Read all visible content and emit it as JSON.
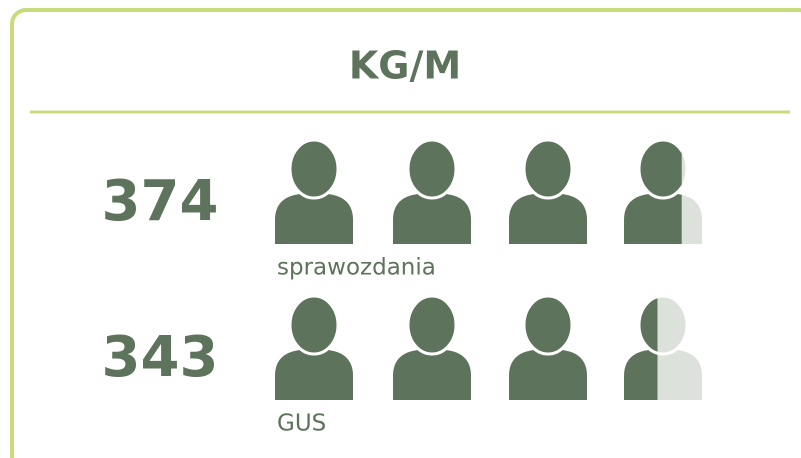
{
  "chart_data": {
    "type": "pictogram",
    "title": "KG/M",
    "categories": [
      "sprawozdania",
      "GUS"
    ],
    "values": [
      374,
      343
    ],
    "color": "#5d735b",
    "xlim": [
      0,
      400
    ]
  }
}
